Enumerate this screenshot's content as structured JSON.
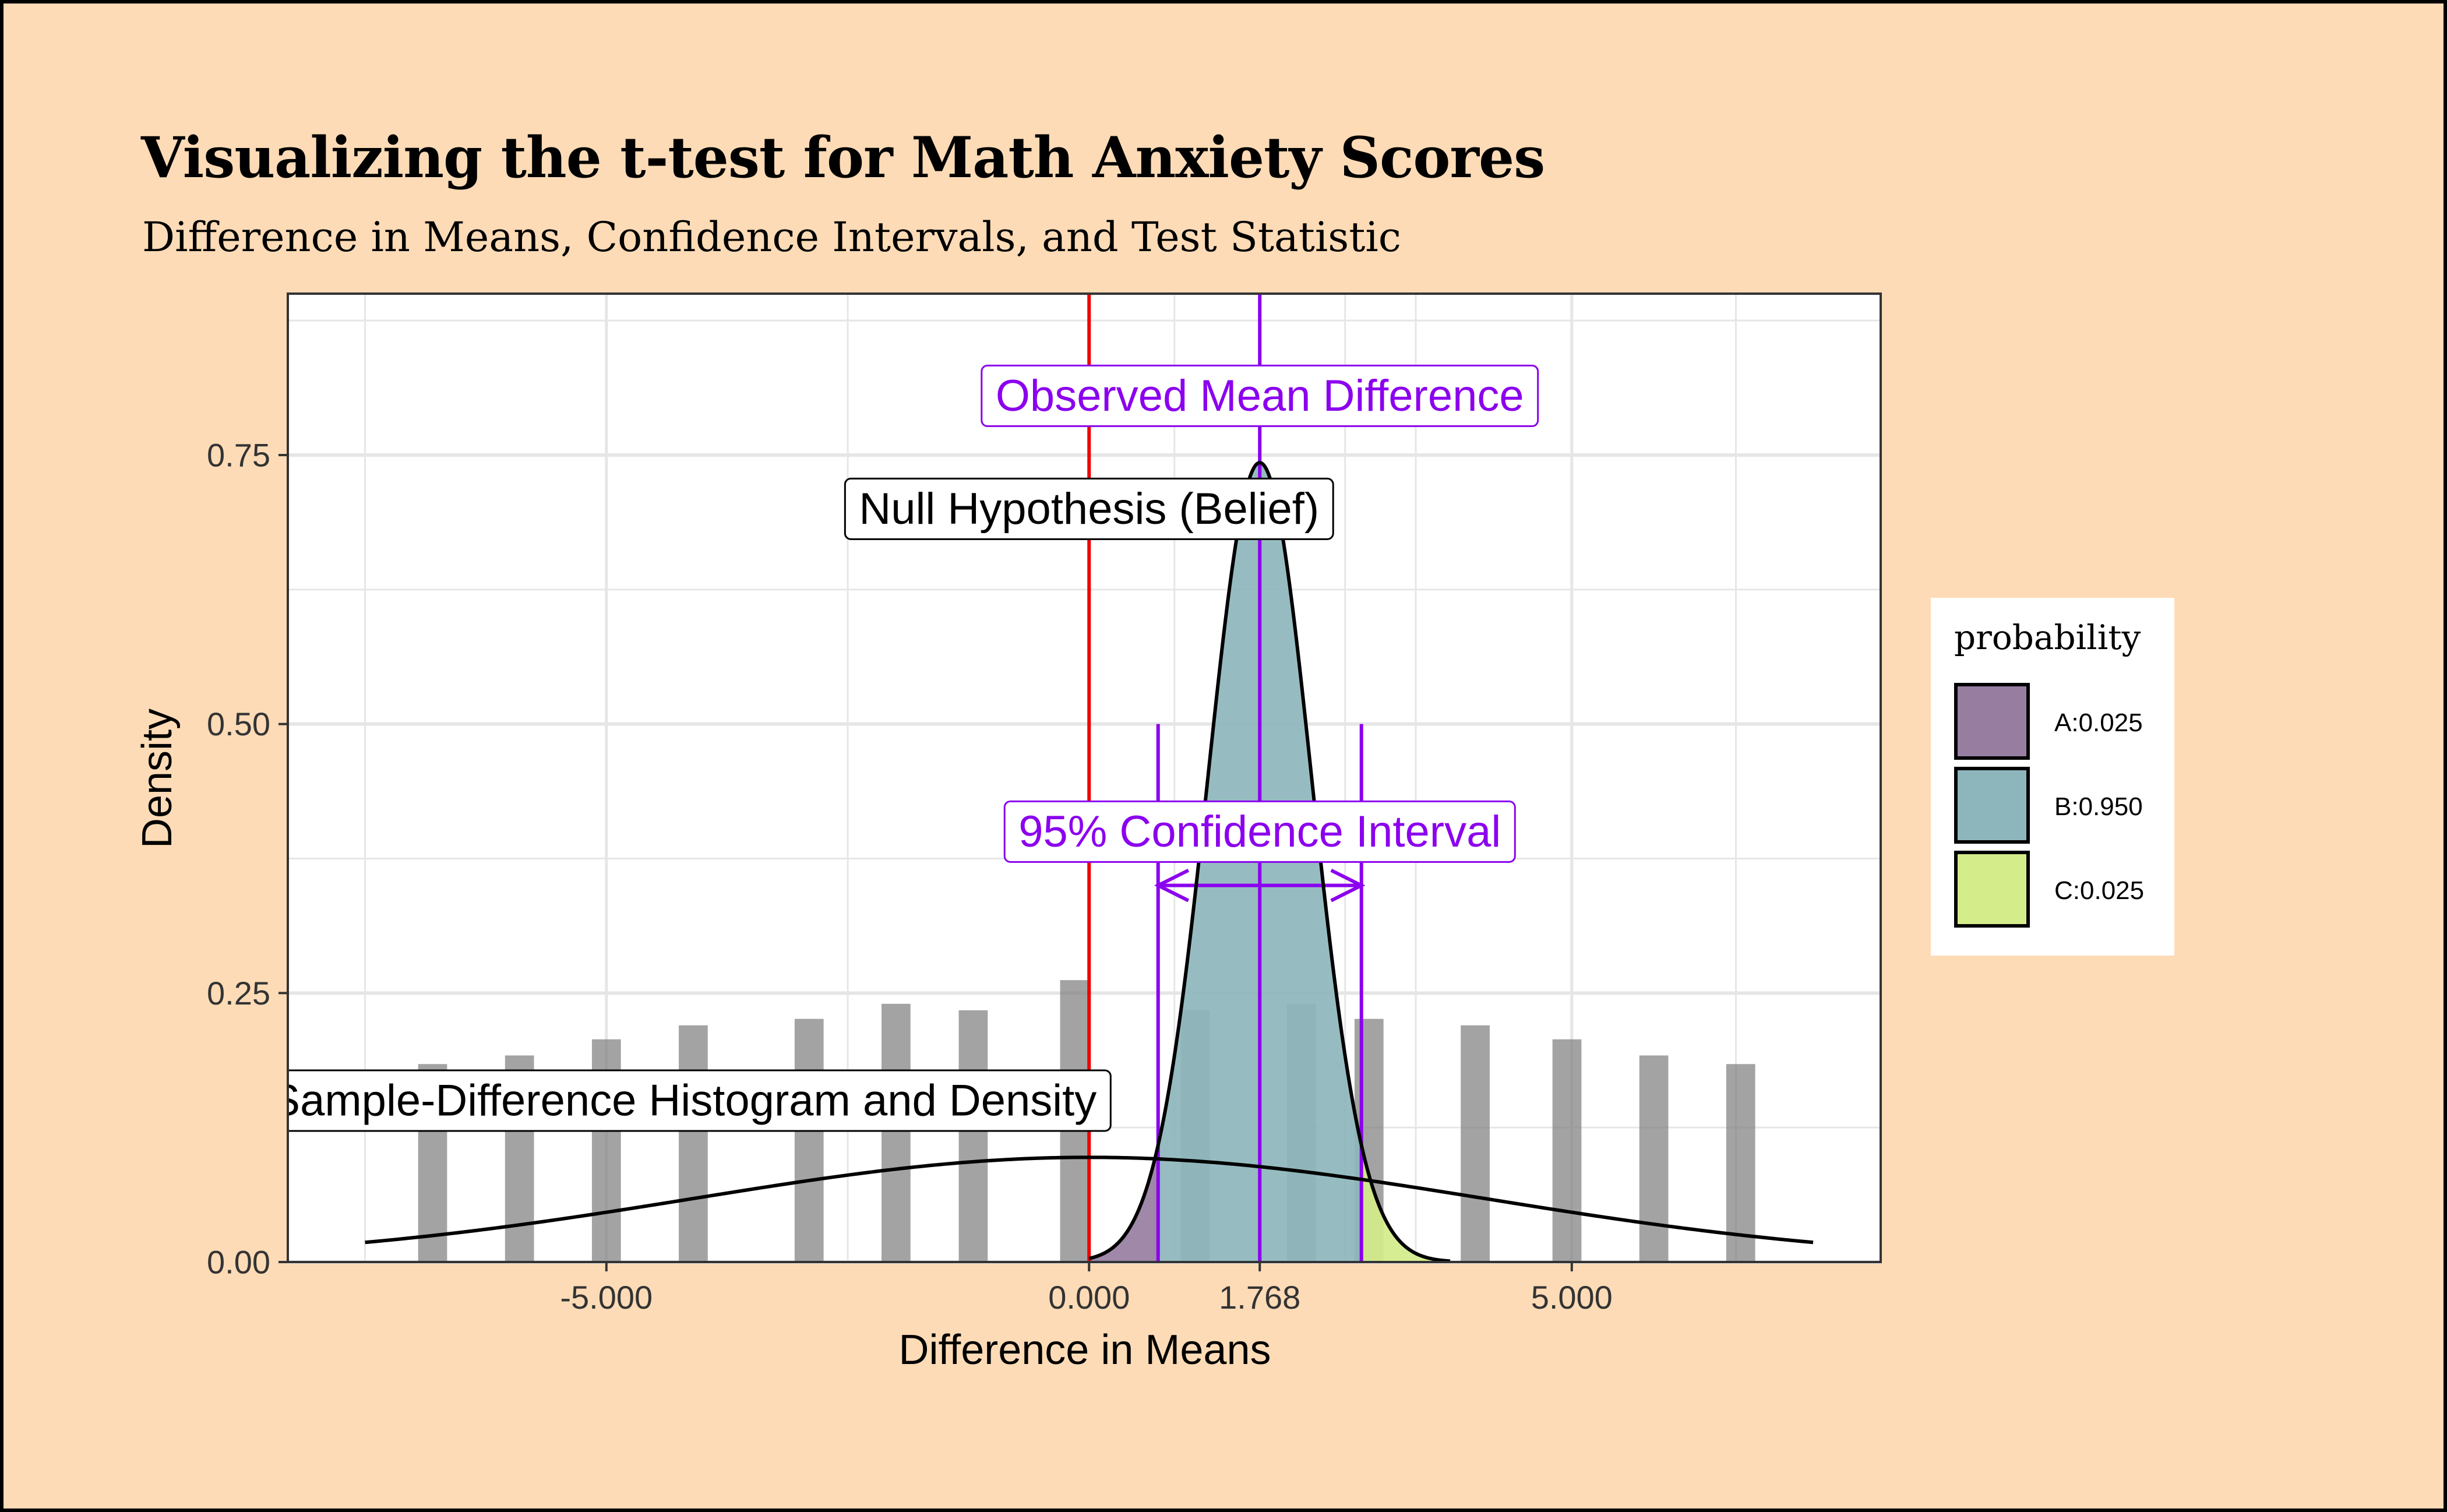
{
  "chart_data": {
    "type": "bar",
    "title": "Visualizing the t-test for Math Anxiety Scores",
    "subtitle": "Difference in Means, Confidence Intervals, and Test Statistic",
    "xlabel": "Difference in Means",
    "ylabel": "Density",
    "xlim": [
      -8.3,
      8.2
    ],
    "ylim": [
      0,
      0.9
    ],
    "x_ticks": [
      {
        "value": -5,
        "label": "-5.000"
      },
      {
        "value": 0,
        "label": "0.000"
      },
      {
        "value": 1.768,
        "label": "1.768"
      },
      {
        "value": 5,
        "label": "5.000"
      }
    ],
    "y_ticks": [
      {
        "value": 0,
        "label": "0.00"
      },
      {
        "value": 0.25,
        "label": "0.25"
      },
      {
        "value": 0.5,
        "label": "0.50"
      },
      {
        "value": 0.75,
        "label": "0.75"
      }
    ],
    "grid": true,
    "histogram": {
      "name": "Sample-Difference Histogram and Density",
      "color": "#808080",
      "bin_width": 0.3,
      "bins": [
        {
          "x": -6.8,
          "density": 0.184
        },
        {
          "x": -5.9,
          "density": 0.192
        },
        {
          "x": -5.0,
          "density": 0.207
        },
        {
          "x": -4.1,
          "density": 0.22
        },
        {
          "x": -2.9,
          "density": 0.226
        },
        {
          "x": -2.0,
          "density": 0.24
        },
        {
          "x": -1.2,
          "density": 0.234
        },
        {
          "x": -0.15,
          "density": 0.262
        },
        {
          "x": 1.1,
          "density": 0.234
        },
        {
          "x": 2.2,
          "density": 0.24
        },
        {
          "x": 2.9,
          "density": 0.226
        },
        {
          "x": 4.0,
          "density": 0.22
        },
        {
          "x": 4.95,
          "density": 0.207
        },
        {
          "x": 5.85,
          "density": 0.192
        },
        {
          "x": 6.75,
          "density": 0.184
        }
      ]
    },
    "sample_density": {
      "mean": 0,
      "sd": 4.1,
      "x_range": [
        -7.5,
        7.5
      ]
    },
    "null_distribution": {
      "mean": 1.768,
      "sd": 0.537,
      "x_range": [
        0,
        3.74
      ]
    },
    "observed_mean_difference": 1.768,
    "null_value": 0,
    "confidence_interval": [
      0.715,
      2.821
    ],
    "annotations": [
      {
        "text": "Observed Mean Difference",
        "x": 1.768,
        "y": 0.805,
        "color": "#8b00ee"
      },
      {
        "text": "Null Hypothesis (Belief)",
        "x": 0,
        "y": 0.7,
        "color": "#000000"
      },
      {
        "text": "95% Confidence Interval",
        "x": 1.768,
        "y": 0.4,
        "color": "#8b00ee"
      },
      {
        "text": "Sample-Difference Histogram and Density",
        "x": -4.2,
        "y": 0.15,
        "color": "#000000"
      }
    ],
    "legend": {
      "title": "probability",
      "placement": "right",
      "items": [
        {
          "label": "A:0.025",
          "color": "#977ea1"
        },
        {
          "label": "B:0.950",
          "color": "#8db6bc"
        },
        {
          "label": "C:0.025",
          "color": "#d4ec8a"
        }
      ]
    },
    "colors": {
      "background": "#fddbb6",
      "panel": "#ffffff",
      "null_line": "#ee0000",
      "observed_line": "#8b00ee",
      "ci_line": "#8b00ee",
      "grid": "#e6e6e6"
    }
  }
}
